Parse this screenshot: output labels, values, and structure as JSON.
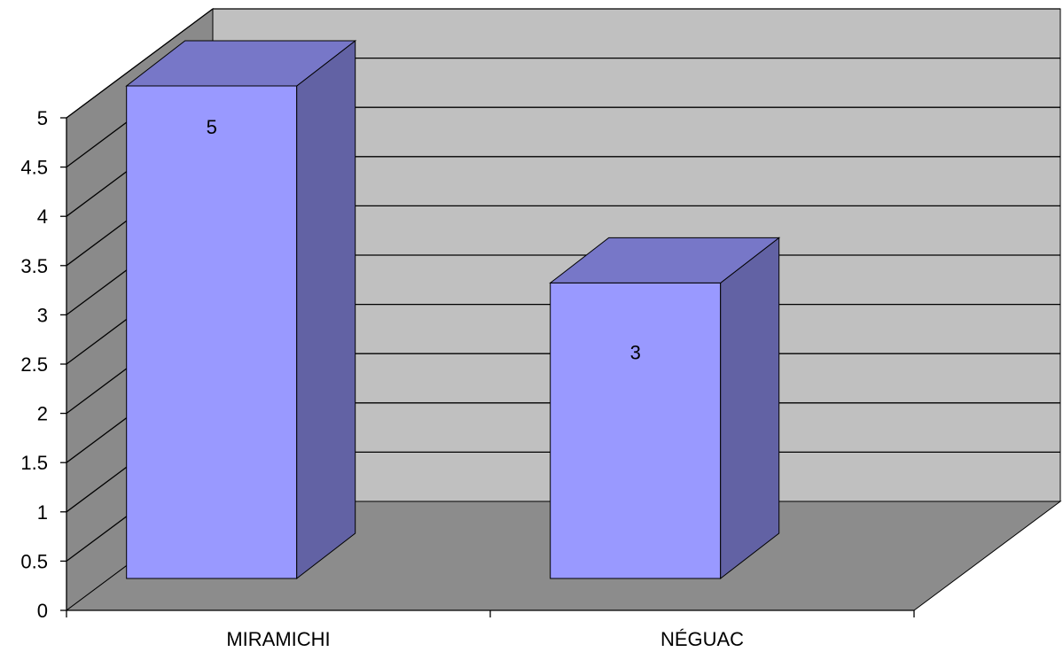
{
  "chart_data": {
    "type": "bar",
    "style": "3d-column",
    "categories": [
      "MIRAMICHI",
      "NÉGUAC"
    ],
    "series": [
      {
        "values": [
          5,
          3
        ]
      }
    ],
    "data_labels": [
      "5",
      "3"
    ],
    "y_ticks": [
      "0",
      "0.5",
      "1",
      "1.5",
      "2",
      "2.5",
      "3",
      "3.5",
      "4",
      "4.5",
      "5"
    ],
    "ylim": [
      0,
      5
    ],
    "grid": true,
    "legend": "none",
    "title": "",
    "xlabel": "",
    "ylabel": "",
    "colors": {
      "bar_front": "#9999ff",
      "bar_top": "#7777c8",
      "bar_side": "#6262a4",
      "back_wall": "#c0c0c0",
      "side_wall": "#8a8a8a",
      "floor": "#8c8c8c"
    }
  }
}
